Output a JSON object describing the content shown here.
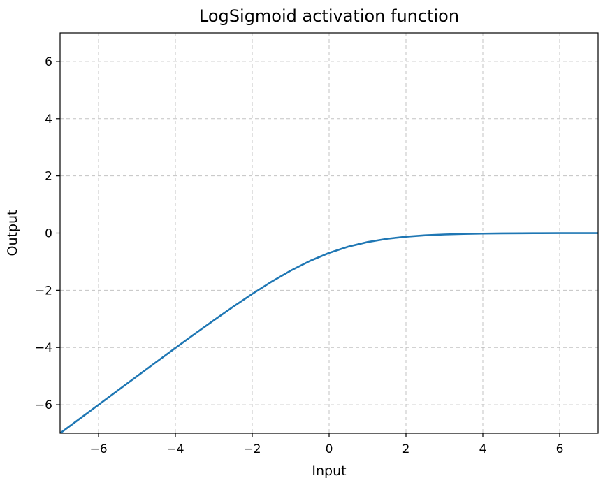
{
  "chart_data": {
    "type": "line",
    "title": "LogSigmoid activation function",
    "xlabel": "Input",
    "ylabel": "Output",
    "xlim": [
      -7,
      7
    ],
    "ylim": [
      -7,
      7
    ],
    "xticks": [
      -6,
      -4,
      -2,
      0,
      2,
      4,
      6
    ],
    "yticks": [
      -6,
      -4,
      -2,
      0,
      2,
      4,
      6
    ],
    "xtick_labels": [
      "−6",
      "−4",
      "−2",
      "0",
      "2",
      "4",
      "6"
    ],
    "ytick_labels": [
      "−6",
      "−4",
      "−2",
      "0",
      "2",
      "4",
      "6"
    ],
    "grid": true,
    "series": [
      {
        "color": "#1f77b4",
        "x": [
          -7,
          -6.5,
          -6,
          -5.5,
          -5,
          -4.5,
          -4,
          -3.5,
          -3,
          -2.5,
          -2,
          -1.5,
          -1,
          -0.5,
          0,
          0.5,
          1,
          1.5,
          2,
          2.5,
          3,
          3.5,
          4,
          4.5,
          5,
          5.5,
          6,
          6.5,
          7
        ],
        "y": [
          -7.001,
          -6.5015,
          -6.0025,
          -5.5041,
          -5.0067,
          -4.5111,
          -4.0181,
          -3.5298,
          -3.0486,
          -2.5789,
          -2.1269,
          -1.7014,
          -1.3133,
          -0.9741,
          -0.6931,
          -0.4741,
          -0.3133,
          -0.2014,
          -0.1269,
          -0.0789,
          -0.0486,
          -0.0298,
          -0.0181,
          -0.0111,
          -0.0067,
          -0.0041,
          -0.0025,
          -0.0015,
          -0.0009
        ]
      }
    ]
  }
}
